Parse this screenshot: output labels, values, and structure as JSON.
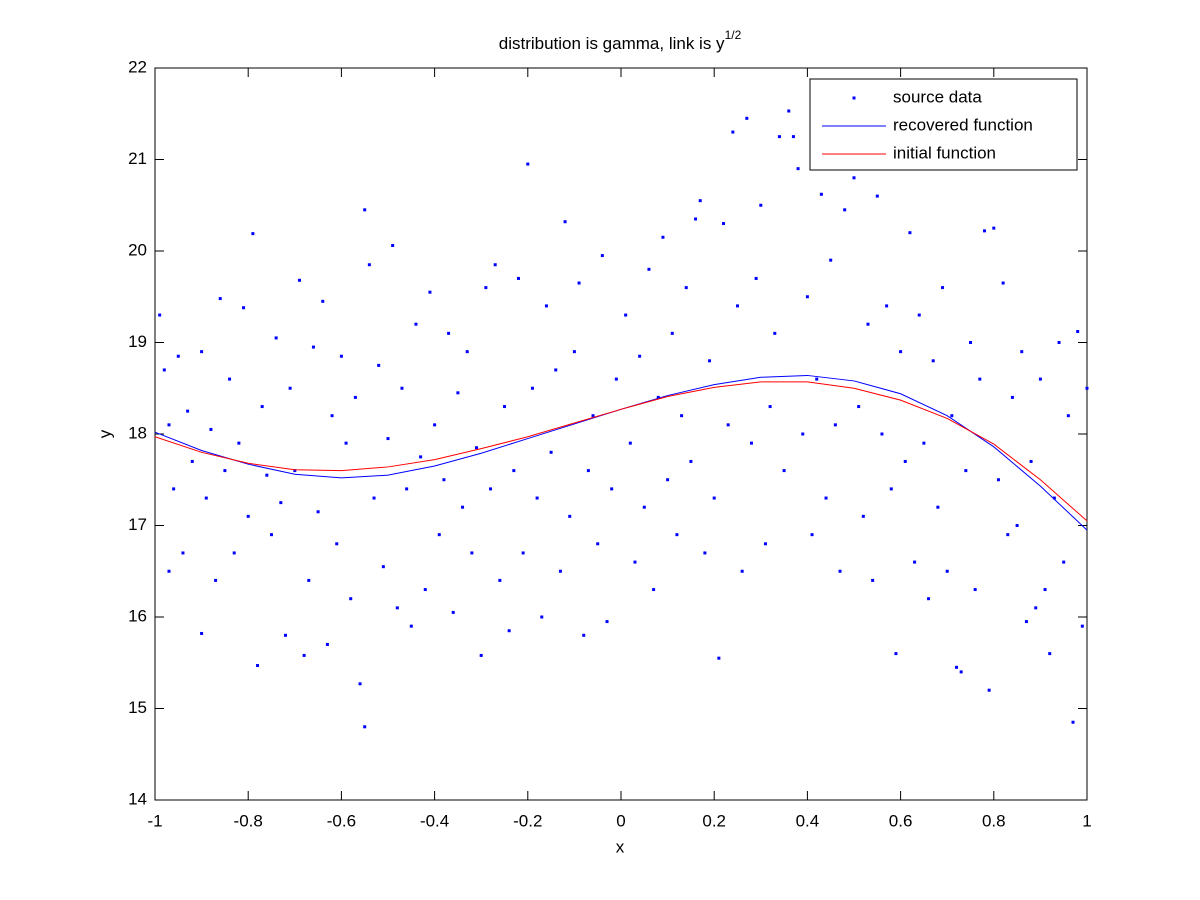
{
  "chart_data": {
    "type": "scatter",
    "title": {
      "text": "distribution is gamma, link is y",
      "superscript": "1/2"
    },
    "xlabel": "x",
    "ylabel": "y",
    "xlim": [
      -1,
      1
    ],
    "ylim": [
      14,
      22
    ],
    "xticks": [
      -1,
      -0.8,
      -0.6,
      -0.4,
      -0.2,
      0,
      0.2,
      0.4,
      0.6,
      0.8,
      1
    ],
    "yticks": [
      14,
      15,
      16,
      17,
      18,
      19,
      20,
      21,
      22
    ],
    "legend": "northeast",
    "grid": false,
    "series": [
      {
        "name": "source data",
        "type": "scatter",
        "color": "#0000ff",
        "x": [
          -0.99,
          -0.98,
          -0.97,
          -0.97,
          -0.96,
          -0.95,
          -0.94,
          -0.93,
          -0.92,
          -0.9,
          -0.9,
          -0.89,
          -0.88,
          -0.87,
          -0.86,
          -0.85,
          -0.84,
          -0.83,
          -0.82,
          -0.81,
          -0.8,
          -0.79,
          -0.78,
          -0.77,
          -0.76,
          -0.75,
          -0.74,
          -0.73,
          -0.72,
          -0.71,
          -0.7,
          -0.69,
          -0.68,
          -0.67,
          -0.66,
          -0.65,
          -0.64,
          -0.63,
          -0.62,
          -0.61,
          -0.6,
          -0.59,
          -0.58,
          -0.57,
          -0.56,
          -0.55,
          -0.55,
          -0.54,
          -0.53,
          -0.52,
          -0.51,
          -0.5,
          -0.49,
          -0.48,
          -0.47,
          -0.46,
          -0.45,
          -0.44,
          -0.43,
          -0.42,
          -0.41,
          -0.4,
          -0.39,
          -0.38,
          -0.37,
          -0.36,
          -0.35,
          -0.34,
          -0.33,
          -0.32,
          -0.31,
          -0.3,
          -0.29,
          -0.28,
          -0.27,
          -0.26,
          -0.25,
          -0.24,
          -0.23,
          -0.22,
          -0.21,
          -0.2,
          -0.19,
          -0.18,
          -0.17,
          -0.16,
          -0.15,
          -0.14,
          -0.13,
          -0.12,
          -0.11,
          -0.1,
          -0.09,
          -0.08,
          -0.07,
          -0.06,
          -0.05,
          -0.04,
          -0.03,
          -0.02,
          -0.01,
          0.01,
          0.02,
          0.03,
          0.04,
          0.05,
          0.06,
          0.07,
          0.08,
          0.09,
          0.1,
          0.11,
          0.12,
          0.13,
          0.14,
          0.15,
          0.16,
          0.17,
          0.18,
          0.19,
          0.2,
          0.21,
          0.22,
          0.23,
          0.24,
          0.25,
          0.26,
          0.27,
          0.28,
          0.29,
          0.3,
          0.31,
          0.32,
          0.33,
          0.34,
          0.35,
          0.36,
          0.37,
          0.38,
          0.39,
          0.4,
          0.41,
          0.42,
          0.43,
          0.44,
          0.45,
          0.46,
          0.47,
          0.48,
          0.5,
          0.51,
          0.52,
          0.53,
          0.54,
          0.55,
          0.56,
          0.57,
          0.58,
          0.59,
          0.6,
          0.61,
          0.62,
          0.63,
          0.64,
          0.65,
          0.66,
          0.67,
          0.68,
          0.69,
          0.7,
          0.71,
          0.72,
          0.73,
          0.74,
          0.75,
          0.76,
          0.77,
          0.78,
          0.79,
          0.8,
          0.81,
          0.82,
          0.83,
          0.84,
          0.85,
          0.86,
          0.87,
          0.88,
          0.89,
          0.9,
          0.91,
          0.92,
          0.93,
          0.94,
          0.95,
          0.96,
          0.97,
          0.98,
          0.99,
          1.0
        ],
        "y": [
          19.3,
          18.7,
          16.5,
          18.1,
          17.4,
          18.85,
          16.7,
          18.25,
          17.7,
          15.82,
          18.9,
          17.3,
          18.05,
          16.4,
          19.48,
          17.6,
          18.6,
          16.7,
          17.9,
          19.38,
          17.1,
          20.19,
          15.47,
          18.3,
          17.55,
          16.9,
          19.05,
          17.25,
          15.8,
          18.5,
          17.6,
          19.68,
          15.58,
          16.4,
          18.95,
          17.15,
          19.45,
          15.7,
          18.2,
          16.8,
          18.85,
          17.9,
          16.2,
          18.4,
          15.27,
          14.8,
          20.45,
          19.85,
          17.3,
          18.75,
          16.55,
          17.95,
          20.06,
          16.1,
          18.5,
          17.4,
          15.9,
          19.2,
          17.75,
          16.3,
          19.55,
          18.1,
          16.9,
          17.5,
          19.1,
          16.05,
          18.45,
          17.2,
          18.9,
          16.7,
          17.85,
          15.58,
          19.6,
          17.4,
          19.85,
          16.4,
          18.3,
          15.85,
          17.6,
          19.7,
          16.7,
          20.95,
          18.5,
          17.3,
          16.0,
          19.4,
          17.8,
          18.7,
          16.5,
          20.32,
          17.1,
          18.9,
          19.65,
          15.8,
          17.6,
          18.2,
          16.8,
          19.95,
          15.95,
          17.4,
          18.6,
          19.3,
          17.9,
          16.6,
          18.85,
          17.2,
          19.8,
          16.3,
          18.4,
          20.15,
          17.5,
          19.1,
          16.9,
          18.2,
          19.6,
          17.7,
          20.35,
          20.55,
          16.7,
          18.8,
          17.3,
          15.55,
          20.3,
          18.1,
          21.3,
          19.4,
          16.5,
          21.45,
          17.9,
          19.7,
          20.5,
          16.8,
          18.3,
          19.1,
          21.25,
          17.6,
          21.53,
          21.25,
          20.9,
          18.0,
          19.5,
          16.9,
          18.6,
          20.62,
          17.3,
          19.9,
          18.1,
          16.5,
          20.45,
          20.8,
          18.3,
          17.1,
          19.2,
          16.4,
          20.6,
          18.0,
          19.4,
          17.4,
          15.6,
          18.9,
          17.7,
          20.2,
          16.6,
          19.3,
          17.9,
          16.2,
          18.8,
          17.2,
          19.6,
          16.5,
          18.2,
          15.45,
          15.4,
          17.6,
          19.0,
          16.3,
          18.6,
          20.22,
          15.2,
          20.25,
          17.5,
          19.65,
          16.9,
          18.4,
          17.0,
          18.9,
          15.95,
          17.7,
          16.1,
          18.6,
          16.3,
          15.6,
          17.3,
          19.0,
          16.6,
          18.2,
          14.85,
          19.12,
          15.9,
          18.5
        ]
      },
      {
        "name": "recovered function",
        "type": "line",
        "color": "#0000ff",
        "x": [
          -1,
          -0.9,
          -0.8,
          -0.7,
          -0.6,
          -0.5,
          -0.4,
          -0.3,
          -0.2,
          -0.1,
          0,
          0.1,
          0.2,
          0.3,
          0.4,
          0.5,
          0.6,
          0.7,
          0.8,
          0.9,
          1
        ],
        "y": [
          18.02,
          17.82,
          17.67,
          17.56,
          17.52,
          17.55,
          17.65,
          17.79,
          17.95,
          18.11,
          18.27,
          18.42,
          18.54,
          18.62,
          18.64,
          18.58,
          18.44,
          18.2,
          17.86,
          17.43,
          16.95
        ]
      },
      {
        "name": "initial function",
        "type": "line",
        "color": "#ff0000",
        "x": [
          -1,
          -0.9,
          -0.8,
          -0.7,
          -0.6,
          -0.5,
          -0.4,
          -0.3,
          -0.2,
          -0.1,
          0,
          0.1,
          0.2,
          0.3,
          0.4,
          0.5,
          0.6,
          0.7,
          0.8,
          0.9,
          1
        ],
        "y": [
          17.97,
          17.8,
          17.68,
          17.61,
          17.6,
          17.64,
          17.72,
          17.84,
          17.97,
          18.12,
          18.27,
          18.41,
          18.51,
          18.57,
          18.57,
          18.5,
          18.37,
          18.17,
          17.89,
          17.5,
          17.05
        ]
      }
    ]
  }
}
